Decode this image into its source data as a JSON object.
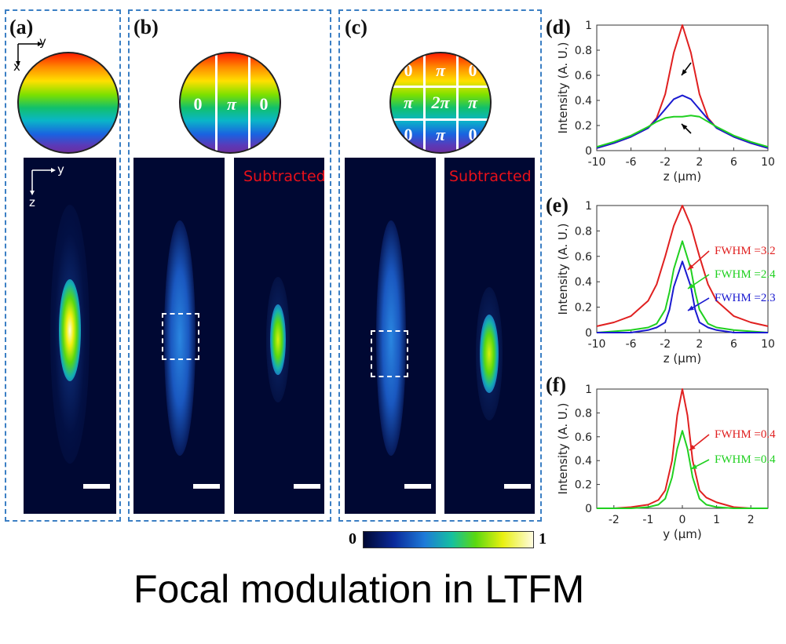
{
  "panels": {
    "a": "(a)",
    "b": "(b)",
    "c": "(c)",
    "d": "(d)",
    "e": "(e)",
    "f": "(f)"
  },
  "axis_indicators": {
    "y": "y",
    "x": "x",
    "z": "z"
  },
  "phase_b": [
    "0",
    "π",
    "0"
  ],
  "phase_c": [
    "0",
    "π",
    "0",
    "π",
    "2π",
    "π",
    "0",
    "π",
    "0"
  ],
  "subtracted_label": "Subtracted",
  "colorbar": {
    "min": "0",
    "max": "1"
  },
  "caption": "Focal modulation in LTFM",
  "chart_data": [
    {
      "type": "line",
      "panel": "(d)",
      "xlabel": "z (μm)",
      "ylabel": "Intensity (A. U.)",
      "xlim": [
        -10,
        10
      ],
      "ylim": [
        0,
        1
      ],
      "xticks": [
        -10,
        -6,
        -2,
        2,
        6,
        10
      ],
      "yticks": [
        0,
        0.2,
        0.4,
        0.6,
        0.8,
        1
      ],
      "x": [
        -10,
        -8,
        -6,
        -4,
        -3,
        -2,
        -1,
        0,
        1,
        2,
        3,
        4,
        6,
        8,
        10
      ],
      "series": [
        {
          "color": "#e02020",
          "values": [
            0.02,
            0.06,
            0.11,
            0.18,
            0.26,
            0.45,
            0.78,
            1.0,
            0.78,
            0.45,
            0.26,
            0.18,
            0.11,
            0.06,
            0.02
          ]
        },
        {
          "color": "#1a1ad0",
          "values": [
            0.02,
            0.06,
            0.11,
            0.18,
            0.25,
            0.33,
            0.41,
            0.44,
            0.41,
            0.33,
            0.25,
            0.18,
            0.11,
            0.06,
            0.02
          ]
        },
        {
          "color": "#20d020",
          "values": [
            0.03,
            0.07,
            0.12,
            0.19,
            0.23,
            0.26,
            0.27,
            0.27,
            0.28,
            0.27,
            0.23,
            0.19,
            0.12,
            0.07,
            0.03
          ]
        }
      ]
    },
    {
      "type": "line",
      "panel": "(e)",
      "xlabel": "z (μm)",
      "ylabel": "Intensity (A. U.)",
      "xlim": [
        -10,
        10
      ],
      "ylim": [
        0,
        1
      ],
      "xticks": [
        -10,
        -6,
        -2,
        2,
        6,
        10
      ],
      "yticks": [
        0,
        0.2,
        0.4,
        0.6,
        0.8,
        1
      ],
      "annotations": [
        "FWHM =3.2",
        "FWHM =2.4",
        "FWHM =2.3"
      ],
      "x": [
        -10,
        -8,
        -6,
        -4,
        -3,
        -2,
        -1.5,
        -1,
        0,
        1,
        1.5,
        2,
        3,
        4,
        6,
        8,
        10
      ],
      "series": [
        {
          "color": "#e02020",
          "values": [
            0.05,
            0.08,
            0.13,
            0.25,
            0.38,
            0.6,
            0.72,
            0.84,
            1.0,
            0.84,
            0.72,
            0.6,
            0.38,
            0.25,
            0.13,
            0.08,
            0.05
          ]
        },
        {
          "color": "#20d020",
          "values": [
            0.0,
            0.01,
            0.02,
            0.04,
            0.07,
            0.18,
            0.32,
            0.5,
            0.72,
            0.5,
            0.32,
            0.18,
            0.07,
            0.04,
            0.02,
            0.01,
            0.0
          ]
        },
        {
          "color": "#1a1ad0",
          "values": [
            0.0,
            0.0,
            0.0,
            0.02,
            0.04,
            0.08,
            0.18,
            0.36,
            0.56,
            0.36,
            0.18,
            0.08,
            0.04,
            0.02,
            0.0,
            0.0,
            0.0
          ]
        }
      ]
    },
    {
      "type": "line",
      "panel": "(f)",
      "xlabel": "y (μm)",
      "ylabel": "Intensity (A. U.)",
      "xlim": [
        -2.5,
        2.5
      ],
      "ylim": [
        0,
        1
      ],
      "xticks": [
        -2,
        -1,
        0,
        1,
        2
      ],
      "yticks": [
        0,
        0.2,
        0.4,
        0.6,
        0.8,
        1
      ],
      "annotations": [
        "FWHM =0.4",
        "FWHM =0.4"
      ],
      "x": [
        -2.5,
        -2,
        -1.5,
        -1,
        -0.7,
        -0.5,
        -0.3,
        -0.15,
        0,
        0.15,
        0.3,
        0.5,
        0.7,
        1,
        1.5,
        2,
        2.5
      ],
      "series": [
        {
          "color": "#e02020",
          "values": [
            0.0,
            0.0,
            0.01,
            0.03,
            0.07,
            0.15,
            0.4,
            0.78,
            1.0,
            0.78,
            0.4,
            0.15,
            0.09,
            0.05,
            0.01,
            0.0,
            0.0
          ]
        },
        {
          "color": "#20d020",
          "values": [
            0.0,
            0.0,
            0.0,
            0.01,
            0.03,
            0.08,
            0.26,
            0.5,
            0.65,
            0.5,
            0.26,
            0.08,
            0.03,
            0.01,
            0.0,
            0.0,
            0.0
          ]
        }
      ]
    }
  ]
}
